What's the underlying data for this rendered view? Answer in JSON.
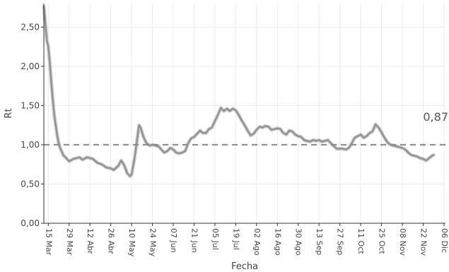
{
  "chart_data": {
    "type": "line",
    "title": "",
    "xlabel": "Fecha",
    "ylabel": "Rt",
    "ylim": [
      0,
      2.8
    ],
    "grid": true,
    "x_range": [
      "2020-03-12",
      "2020-12-07"
    ],
    "x_ticks": [
      {
        "date": "2020-03-15",
        "label": "15 Mar"
      },
      {
        "date": "2020-03-29",
        "label": "29 Mar"
      },
      {
        "date": "2020-04-12",
        "label": "12 Abr"
      },
      {
        "date": "2020-04-26",
        "label": "26 Abr"
      },
      {
        "date": "2020-05-10",
        "label": "10 May"
      },
      {
        "date": "2020-05-24",
        "label": "24 May"
      },
      {
        "date": "2020-06-07",
        "label": "07 Jun"
      },
      {
        "date": "2020-06-21",
        "label": "21 Jun"
      },
      {
        "date": "2020-07-05",
        "label": "05 Jul"
      },
      {
        "date": "2020-07-19",
        "label": "19 Jul"
      },
      {
        "date": "2020-08-02",
        "label": "02 Ago"
      },
      {
        "date": "2020-08-16",
        "label": "16 Ago"
      },
      {
        "date": "2020-08-30",
        "label": "30 Ago"
      },
      {
        "date": "2020-09-13",
        "label": "13 Sep"
      },
      {
        "date": "2020-09-27",
        "label": "27 Sep"
      },
      {
        "date": "2020-10-11",
        "label": "11 Oct"
      },
      {
        "date": "2020-10-25",
        "label": "25 Oct"
      },
      {
        "date": "2020-11-08",
        "label": "08 Nov"
      },
      {
        "date": "2020-11-22",
        "label": "22 Nov"
      },
      {
        "date": "2020-12-06",
        "label": "06 Dic"
      }
    ],
    "y_ticks": [
      {
        "value": 0,
        "label": "0,00"
      },
      {
        "value": 0.5,
        "label": "0,50"
      },
      {
        "value": 1.0,
        "label": "1,00"
      },
      {
        "value": 1.5,
        "label": "1,50"
      },
      {
        "value": 2.0,
        "label": "2,00"
      },
      {
        "value": 2.5,
        "label": "2,50"
      }
    ],
    "reference_line": {
      "y": 1.0,
      "style": "dashed"
    },
    "last_value_label": "0,87",
    "colors": {
      "line": "#8c8c8c",
      "band": "#c9c9c9",
      "reference": "#888888",
      "grid": "#ececec",
      "axis": "#333333"
    },
    "series": [
      {
        "points": [
          [
            "2020-03-12",
            2.76
          ],
          [
            "2020-03-13",
            2.55
          ],
          [
            "2020-03-14",
            2.33
          ],
          [
            "2020-03-15",
            2.25
          ],
          [
            "2020-03-16",
            2.05
          ],
          [
            "2020-03-17",
            1.8
          ],
          [
            "2020-03-18",
            1.58
          ],
          [
            "2020-03-19",
            1.38
          ],
          [
            "2020-03-20",
            1.25
          ],
          [
            "2020-03-21",
            1.12
          ],
          [
            "2020-03-22",
            1.02
          ],
          [
            "2020-03-23",
            0.96
          ],
          [
            "2020-03-25",
            0.87
          ],
          [
            "2020-03-27",
            0.83
          ],
          [
            "2020-03-29",
            0.79
          ],
          [
            "2020-04-01",
            0.82
          ],
          [
            "2020-04-05",
            0.84
          ],
          [
            "2020-04-07",
            0.81
          ],
          [
            "2020-04-10",
            0.84
          ],
          [
            "2020-04-14",
            0.82
          ],
          [
            "2020-04-17",
            0.77
          ],
          [
            "2020-04-20",
            0.75
          ],
          [
            "2020-04-23",
            0.71
          ],
          [
            "2020-04-26",
            0.7
          ],
          [
            "2020-04-28",
            0.68
          ],
          [
            "2020-05-01",
            0.73
          ],
          [
            "2020-05-03",
            0.8
          ],
          [
            "2020-05-05",
            0.74
          ],
          [
            "2020-05-07",
            0.64
          ],
          [
            "2020-05-09",
            0.6
          ],
          [
            "2020-05-10",
            0.62
          ],
          [
            "2020-05-12",
            0.83
          ],
          [
            "2020-05-14",
            1.1
          ],
          [
            "2020-05-15",
            1.25
          ],
          [
            "2020-05-16",
            1.22
          ],
          [
            "2020-05-18",
            1.1
          ],
          [
            "2020-05-20",
            1.02
          ],
          [
            "2020-05-22",
            0.99
          ],
          [
            "2020-05-24",
            1.0
          ],
          [
            "2020-05-26",
            0.99
          ],
          [
            "2020-05-28",
            0.98
          ],
          [
            "2020-05-30",
            0.94
          ],
          [
            "2020-06-01",
            0.9
          ],
          [
            "2020-06-03",
            0.92
          ],
          [
            "2020-06-05",
            0.96
          ],
          [
            "2020-06-07",
            0.94
          ],
          [
            "2020-06-09",
            0.9
          ],
          [
            "2020-06-11",
            0.89
          ],
          [
            "2020-06-13",
            0.9
          ],
          [
            "2020-06-15",
            0.92
          ],
          [
            "2020-06-17",
            1.02
          ],
          [
            "2020-06-19",
            1.08
          ],
          [
            "2020-06-21",
            1.1
          ],
          [
            "2020-06-23",
            1.14
          ],
          [
            "2020-06-25",
            1.18
          ],
          [
            "2020-06-27",
            1.15
          ],
          [
            "2020-06-29",
            1.15
          ],
          [
            "2020-07-01",
            1.2
          ],
          [
            "2020-07-03",
            1.22
          ],
          [
            "2020-07-05",
            1.3
          ],
          [
            "2020-07-07",
            1.38
          ],
          [
            "2020-07-09",
            1.47
          ],
          [
            "2020-07-11",
            1.43
          ],
          [
            "2020-07-13",
            1.46
          ],
          [
            "2020-07-15",
            1.43
          ],
          [
            "2020-07-17",
            1.46
          ],
          [
            "2020-07-19",
            1.44
          ],
          [
            "2020-07-21",
            1.38
          ],
          [
            "2020-07-23",
            1.31
          ],
          [
            "2020-07-25",
            1.25
          ],
          [
            "2020-07-27",
            1.18
          ],
          [
            "2020-07-29",
            1.12
          ],
          [
            "2020-07-31",
            1.14
          ],
          [
            "2020-08-02",
            1.19
          ],
          [
            "2020-08-04",
            1.23
          ],
          [
            "2020-08-06",
            1.22
          ],
          [
            "2020-08-08",
            1.24
          ],
          [
            "2020-08-10",
            1.23
          ],
          [
            "2020-08-12",
            1.19
          ],
          [
            "2020-08-14",
            1.2
          ],
          [
            "2020-08-16",
            1.21
          ],
          [
            "2020-08-18",
            1.2
          ],
          [
            "2020-08-20",
            1.15
          ],
          [
            "2020-08-22",
            1.13
          ],
          [
            "2020-08-24",
            1.18
          ],
          [
            "2020-08-26",
            1.17
          ],
          [
            "2020-08-28",
            1.13
          ],
          [
            "2020-08-30",
            1.11
          ],
          [
            "2020-09-01",
            1.1
          ],
          [
            "2020-09-03",
            1.06
          ],
          [
            "2020-09-05",
            1.05
          ],
          [
            "2020-09-07",
            1.04
          ],
          [
            "2020-09-09",
            1.06
          ],
          [
            "2020-09-11",
            1.05
          ],
          [
            "2020-09-13",
            1.06
          ],
          [
            "2020-09-15",
            1.04
          ],
          [
            "2020-09-17",
            1.05
          ],
          [
            "2020-09-19",
            1.06
          ],
          [
            "2020-09-21",
            1.02
          ],
          [
            "2020-09-23",
            0.98
          ],
          [
            "2020-09-25",
            0.95
          ],
          [
            "2020-09-27",
            0.95
          ],
          [
            "2020-09-29",
            0.95
          ],
          [
            "2020-10-01",
            0.94
          ],
          [
            "2020-10-03",
            0.96
          ],
          [
            "2020-10-05",
            1.02
          ],
          [
            "2020-10-07",
            1.09
          ],
          [
            "2020-10-09",
            1.11
          ],
          [
            "2020-10-11",
            1.13
          ],
          [
            "2020-10-13",
            1.09
          ],
          [
            "2020-10-15",
            1.11
          ],
          [
            "2020-10-17",
            1.15
          ],
          [
            "2020-10-19",
            1.17
          ],
          [
            "2020-10-21",
            1.26
          ],
          [
            "2020-10-23",
            1.22
          ],
          [
            "2020-10-25",
            1.16
          ],
          [
            "2020-10-27",
            1.09
          ],
          [
            "2020-10-29",
            1.03
          ],
          [
            "2020-10-31",
            1.0
          ],
          [
            "2020-11-02",
            0.99
          ],
          [
            "2020-11-04",
            0.98
          ],
          [
            "2020-11-06",
            0.97
          ],
          [
            "2020-11-08",
            0.96
          ],
          [
            "2020-11-10",
            0.94
          ],
          [
            "2020-11-12",
            0.9
          ],
          [
            "2020-11-14",
            0.87
          ],
          [
            "2020-11-16",
            0.86
          ],
          [
            "2020-11-18",
            0.85
          ],
          [
            "2020-11-20",
            0.83
          ],
          [
            "2020-11-22",
            0.82
          ],
          [
            "2020-11-24",
            0.8
          ],
          [
            "2020-11-26",
            0.83
          ],
          [
            "2020-11-28",
            0.86
          ],
          [
            "2020-11-29",
            0.87
          ]
        ]
      }
    ]
  }
}
